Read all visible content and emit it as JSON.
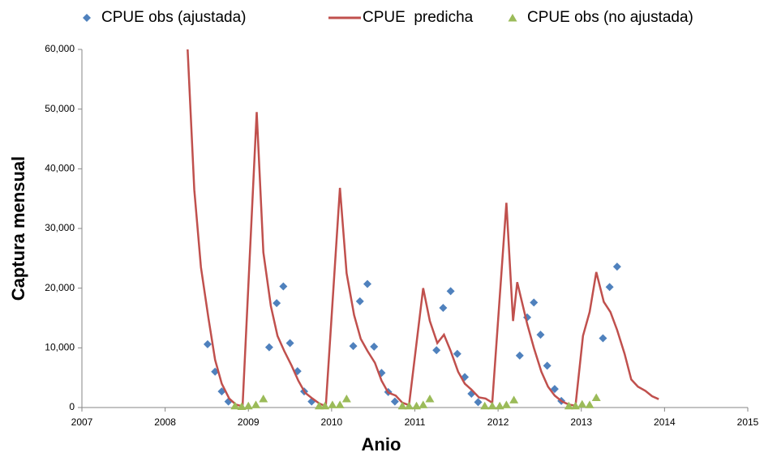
{
  "chart_data": {
    "type": "line",
    "xlabel": "Anio",
    "ylabel": "Captura mensual",
    "xlim": [
      2007,
      2015
    ],
    "xticks": [
      2007,
      2008,
      2009,
      2010,
      2011,
      2012,
      2013,
      2014,
      2015
    ],
    "ylim": [
      0,
      60000
    ],
    "yticks": [
      0,
      {
        "value": 10000,
        "label": "10,000"
      },
      {
        "value": 20000,
        "label": "20,000"
      },
      {
        "value": 30000,
        "label": "30,000"
      },
      {
        "value": 40000,
        "label": "40,000"
      },
      {
        "value": 50000,
        "label": "50,000"
      },
      {
        "value": 60000,
        "label": "60,000"
      }
    ],
    "grid": false,
    "legend": "top",
    "series": [
      {
        "name": "CPUE obs (ajustada)",
        "color": "#4f81bd",
        "type": "scatter",
        "marker": "diamond",
        "x": [
          2008.51,
          2008.6,
          2008.68,
          2008.76,
          2009.25,
          2009.34,
          2009.42,
          2009.5,
          2009.59,
          2009.67,
          2009.76,
          2010.26,
          2010.34,
          2010.43,
          2010.51,
          2010.6,
          2010.68,
          2010.76,
          2011.26,
          2011.34,
          2011.43,
          2011.51,
          2011.6,
          2011.68,
          2011.76,
          2012.26,
          2012.35,
          2012.43,
          2012.51,
          2012.59,
          2012.68,
          2012.76,
          2013.26,
          2013.34,
          2013.43
        ],
        "values": [
          10600,
          6000,
          2700,
          1000,
          10100,
          17500,
          20300,
          10800,
          6100,
          2700,
          1000,
          10300,
          17800,
          20700,
          10200,
          5800,
          2600,
          1000,
          9600,
          16700,
          19500,
          9000,
          5100,
          2300,
          900,
          8700,
          15100,
          17600,
          12200,
          7000,
          3100,
          1100,
          11600,
          20200,
          23600
        ]
      },
      {
        "name": "CPUE  predicha",
        "color": "#c0504d",
        "type": "line",
        "x": [
          2008.27,
          2008.35,
          2008.43,
          2008.52,
          2008.6,
          2008.68,
          2008.77,
          2008.85,
          2008.93,
          2009.1,
          2009.18,
          2009.27,
          2009.35,
          2009.43,
          2009.52,
          2009.6,
          2009.68,
          2009.77,
          2009.85,
          2009.93,
          2010.1,
          2010.18,
          2010.27,
          2010.35,
          2010.43,
          2010.52,
          2010.6,
          2010.68,
          2010.77,
          2010.85,
          2010.93,
          2011.1,
          2011.18,
          2011.27,
          2011.35,
          2011.43,
          2011.52,
          2011.6,
          2011.68,
          2011.77,
          2011.85,
          2011.93,
          2012.1,
          2012.18,
          2012.23,
          2012.35,
          2012.43,
          2012.52,
          2012.6,
          2012.68,
          2012.77,
          2012.85,
          2012.93,
          2013.02,
          2013.1,
          2013.18,
          2013.27,
          2013.35,
          2013.43,
          2013.52,
          2013.6,
          2013.68,
          2013.77,
          2013.85,
          2013.93
        ],
        "values": [
          60000,
          36500,
          23500,
          15000,
          8000,
          4000,
          1500,
          500,
          200,
          49500,
          26000,
          17000,
          12000,
          9500,
          7000,
          4500,
          2500,
          1500,
          700,
          200,
          36800,
          22500,
          15500,
          11500,
          9500,
          7500,
          4500,
          2500,
          2000,
          800,
          400,
          20000,
          14500,
          10800,
          12200,
          9500,
          6000,
          4000,
          3000,
          1700,
          1500,
          800,
          34300,
          14500,
          21000,
          14000,
          10000,
          6000,
          3500,
          2000,
          1000,
          500,
          300,
          12000,
          16000,
          22700,
          17700,
          16000,
          13000,
          9000,
          4700,
          3500,
          2800,
          1900,
          1400
        ]
      },
      {
        "name": "CPUE obs (no ajustada)",
        "color": "#9bbb59",
        "type": "scatter",
        "marker": "triangle",
        "x": [
          2008.84,
          2008.92,
          2009.0,
          2009.09,
          2009.18,
          2009.85,
          2009.92,
          2010.01,
          2010.1,
          2010.18,
          2010.85,
          2010.93,
          2011.02,
          2011.1,
          2011.18,
          2011.84,
          2011.93,
          2012.02,
          2012.1,
          2012.19,
          2012.85,
          2012.93,
          2013.01,
          2013.1,
          2013.18
        ],
        "values": [
          300,
          200,
          300,
          500,
          1500,
          300,
          300,
          500,
          500,
          1500,
          300,
          300,
          300,
          500,
          1500,
          300,
          300,
          300,
          500,
          1300,
          300,
          300,
          600,
          500,
          1700
        ]
      }
    ]
  }
}
